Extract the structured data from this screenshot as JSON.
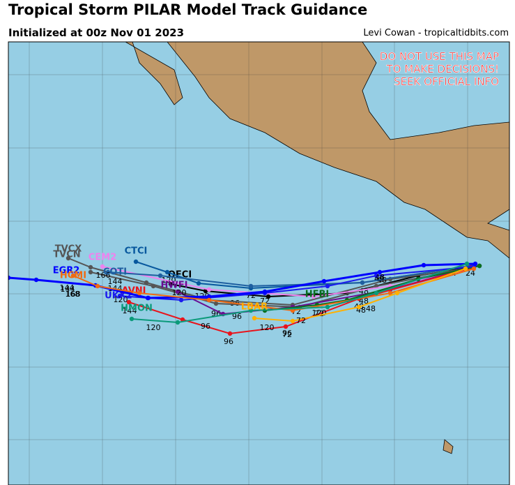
{
  "header": {
    "title": "Tropical Storm PILAR Model Track Guidance",
    "subtitle": "Initialized at 00z Nov 01 2023",
    "credit": "Levi Cowan - tropicaltidbits.com"
  },
  "warning": [
    "DO NOT USE THIS MAP",
    "TO MAKE DECISIONS!",
    "SEEK OFFICIAL INFO"
  ],
  "tracks": [
    {
      "name": "OFCI",
      "color": "#000000",
      "hours": [
        "24",
        "72",
        "120"
      ]
    },
    {
      "name": "CTCI",
      "color": "#08589e",
      "hours": [
        "48",
        "96"
      ]
    },
    {
      "name": "TVCX",
      "color": "#555555",
      "hours": [
        "144",
        "168"
      ]
    },
    {
      "name": "TVCN",
      "color": "#555555",
      "hours": [
        "48",
        "96",
        "120"
      ]
    },
    {
      "name": "CEM2",
      "color": "#ee82ee",
      "hours": [
        "48",
        "72"
      ]
    },
    {
      "name": "COTI",
      "color": "#1f5fa0",
      "hours": [
        "144",
        "166"
      ]
    },
    {
      "name": "HWFI",
      "color": "#6a0d91",
      "hours": [
        "72",
        "96",
        "120"
      ]
    },
    {
      "name": "AVNI",
      "color": "#e8141c",
      "hours": [
        "48",
        "72",
        "96",
        "96",
        "120"
      ]
    },
    {
      "name": "HFBI",
      "color": "#0a6e1e",
      "hours": [
        "48",
        "72",
        "120"
      ]
    },
    {
      "name": "UKX2",
      "color": "#1a1aee",
      "hours": [
        "120",
        "144"
      ]
    },
    {
      "name": "EGR2",
      "color": "#0000ff",
      "hours": [
        "24",
        "48"
      ]
    },
    {
      "name": "HCMI",
      "color": "#f06a12",
      "hours": [
        "144",
        "168"
      ]
    },
    {
      "name": "HMON",
      "color": "#0b9a7a",
      "hours": [
        "48",
        "120",
        "144"
      ]
    },
    {
      "name": "LBAR",
      "color": "#ffb000",
      "hours": [
        "48",
        "72",
        "96"
      ]
    }
  ]
}
